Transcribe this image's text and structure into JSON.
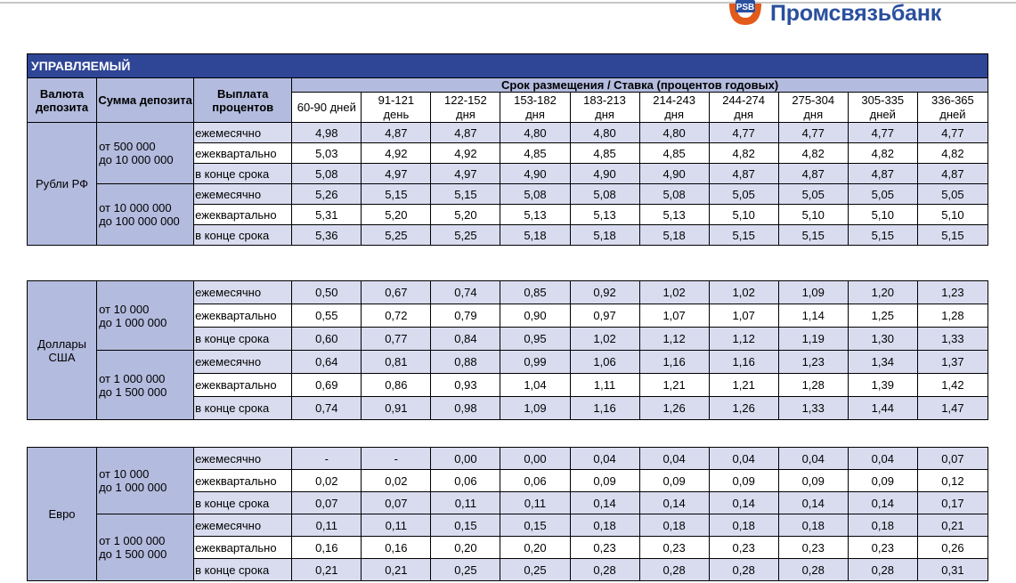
{
  "bank": {
    "name": "Промсвязьбанк"
  },
  "colors": {
    "title_bg": "#2f4596",
    "header_bg": "#b3bbde",
    "stripe_bg": "#d9dcef",
    "logo": "#2a4f9e",
    "logo_accent": "#e35a1a"
  },
  "table": {
    "title": "УПРАВЛЯЕМЫЙ",
    "col_currency": "Валюта депозита",
    "col_amount": "Сумма депозита",
    "col_payout": "Выплата процентов",
    "col_terms": "Срок размещения / Ставка (процентов годовых)",
    "terms": [
      [
        "60-90 дней",
        ""
      ],
      [
        "91-121",
        "день"
      ],
      [
        "122-152",
        "дня"
      ],
      [
        "153-182",
        "дня"
      ],
      [
        "183-213",
        "дня"
      ],
      [
        "214-243",
        "дня"
      ],
      [
        "244-274",
        "дня"
      ],
      [
        "275-304",
        "дня"
      ],
      [
        "305-335",
        "дней"
      ],
      [
        "336-365",
        "дней"
      ]
    ]
  },
  "sections": [
    {
      "currency": "Рубли РФ",
      "groups": [
        {
          "amount": [
            "от 500 000",
            "до 10 000 000"
          ],
          "rows": [
            {
              "payout": "ежемесячно",
              "rates": [
                "4,98",
                "4,87",
                "4,87",
                "4,80",
                "4,80",
                "4,80",
                "4,77",
                "4,77",
                "4,77",
                "4,77"
              ]
            },
            {
              "payout": "ежеквартально",
              "rates": [
                "5,03",
                "4,92",
                "4,92",
                "4,85",
                "4,85",
                "4,85",
                "4,82",
                "4,82",
                "4,82",
                "4,82"
              ]
            },
            {
              "payout": "в конце срока",
              "rates": [
                "5,08",
                "4,97",
                "4,97",
                "4,90",
                "4,90",
                "4,90",
                "4,87",
                "4,87",
                "4,87",
                "4,87"
              ]
            }
          ]
        },
        {
          "amount": [
            "от 10 000 000",
            "до 100 000 000"
          ],
          "rows": [
            {
              "payout": "ежемесячно",
              "rates": [
                "5,26",
                "5,15",
                "5,15",
                "5,08",
                "5,08",
                "5,08",
                "5,05",
                "5,05",
                "5,05",
                "5,05"
              ]
            },
            {
              "payout": "ежеквартально",
              "rates": [
                "5,31",
                "5,20",
                "5,20",
                "5,13",
                "5,13",
                "5,13",
                "5,10",
                "5,10",
                "5,10",
                "5,10"
              ]
            },
            {
              "payout": "в конце срока",
              "rates": [
                "5,36",
                "5,25",
                "5,25",
                "5,18",
                "5,18",
                "5,18",
                "5,15",
                "5,15",
                "5,15",
                "5,15"
              ]
            }
          ]
        }
      ]
    },
    {
      "currency": "Доллары США",
      "groups": [
        {
          "amount": [
            "от 10 000",
            "до 1 000 000"
          ],
          "rows": [
            {
              "payout": "ежемесячно",
              "rates": [
                "0,50",
                "0,67",
                "0,74",
                "0,85",
                "0,92",
                "1,02",
                "1,02",
                "1,09",
                "1,20",
                "1,23"
              ]
            },
            {
              "payout": "ежеквартально",
              "rates": [
                "0,55",
                "0,72",
                "0,79",
                "0,90",
                "0,97",
                "1,07",
                "1,07",
                "1,14",
                "1,25",
                "1,28"
              ]
            },
            {
              "payout": "в конце срока",
              "rates": [
                "0,60",
                "0,77",
                "0,84",
                "0,95",
                "1,02",
                "1,12",
                "1,12",
                "1,19",
                "1,30",
                "1,33"
              ]
            }
          ]
        },
        {
          "amount": [
            "от 1 000 000",
            "до 1 500 000"
          ],
          "rows": [
            {
              "payout": "ежемесячно",
              "rates": [
                "0,64",
                "0,81",
                "0,88",
                "0,99",
                "1,06",
                "1,16",
                "1,16",
                "1,23",
                "1,34",
                "1,37"
              ]
            },
            {
              "payout": "ежеквартально",
              "rates": [
                "0,69",
                "0,86",
                "0,93",
                "1,04",
                "1,11",
                "1,21",
                "1,21",
                "1,28",
                "1,39",
                "1,42"
              ]
            },
            {
              "payout": "в конце срока",
              "rates": [
                "0,74",
                "0,91",
                "0,98",
                "1,09",
                "1,16",
                "1,26",
                "1,26",
                "1,33",
                "1,44",
                "1,47"
              ]
            }
          ]
        }
      ]
    },
    {
      "currency": "Евро",
      "groups": [
        {
          "amount": [
            "от 10 000",
            "до 1 000 000"
          ],
          "rows": [
            {
              "payout": "ежемесячно",
              "rates": [
                "-",
                "-",
                "0,00",
                "0,00",
                "0,04",
                "0,04",
                "0,04",
                "0,04",
                "0,04",
                "0,07"
              ]
            },
            {
              "payout": "ежеквартально",
              "rates": [
                "0,02",
                "0,02",
                "0,06",
                "0,06",
                "0,09",
                "0,09",
                "0,09",
                "0,09",
                "0,09",
                "0,12"
              ]
            },
            {
              "payout": "в конце срока",
              "rates": [
                "0,07",
                "0,07",
                "0,11",
                "0,11",
                "0,14",
                "0,14",
                "0,14",
                "0,14",
                "0,14",
                "0,17"
              ]
            }
          ]
        },
        {
          "amount": [
            "от 1 000 000",
            "до 1 500 000"
          ],
          "rows": [
            {
              "payout": "ежемесячно",
              "rates": [
                "0,11",
                "0,11",
                "0,15",
                "0,15",
                "0,18",
                "0,18",
                "0,18",
                "0,18",
                "0,18",
                "0,21"
              ]
            },
            {
              "payout": "ежеквартально",
              "rates": [
                "0,16",
                "0,16",
                "0,20",
                "0,20",
                "0,23",
                "0,23",
                "0,23",
                "0,23",
                "0,23",
                "0,26"
              ]
            },
            {
              "payout": "в конце срока",
              "rates": [
                "0,21",
                "0,21",
                "0,25",
                "0,25",
                "0,28",
                "0,28",
                "0,28",
                "0,28",
                "0,28",
                "0,31"
              ]
            }
          ]
        }
      ]
    }
  ]
}
